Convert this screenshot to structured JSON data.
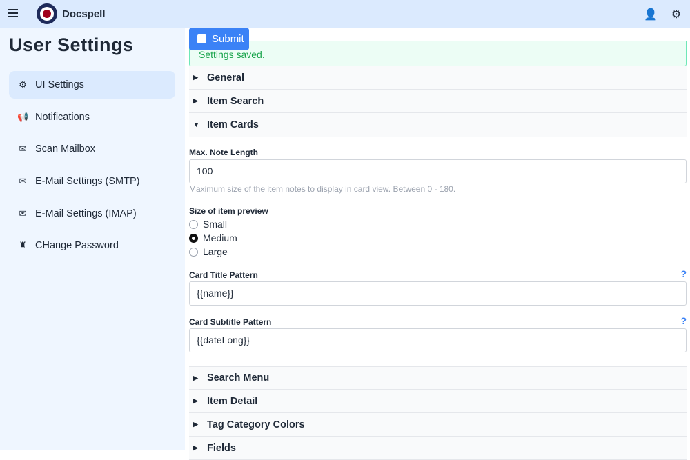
{
  "header": {
    "brand": "Docspell",
    "icons": [
      "menu-icon",
      "user-icon",
      "settings-icon"
    ]
  },
  "sidebar": {
    "title": "User Settings",
    "items": [
      {
        "label": "UI Settings",
        "icon": "gear-icon",
        "active": true
      },
      {
        "label": "Notifications",
        "icon": "megaphone-icon"
      },
      {
        "label": "Scan Mailbox",
        "icon": "envelope-open-icon"
      },
      {
        "label": "E-Mail Settings (SMTP)",
        "icon": "envelope-icon"
      },
      {
        "label": "E-Mail Settings (IMAP)",
        "icon": "envelope-icon"
      },
      {
        "label": "CHange Password",
        "icon": "user-secret-icon"
      }
    ]
  },
  "main": {
    "submit_label": "Submit",
    "saved_message": "Settings saved.",
    "sections_top": [
      "General",
      "Item Search",
      "Item Cards"
    ],
    "max_note": {
      "label": "Max. Note Length",
      "value": "100",
      "hint": "Maximum size of the item notes to display in card view. Between 0 - 180."
    },
    "preview": {
      "label": "Size of item preview",
      "options": [
        "Small",
        "Medium",
        "Large"
      ],
      "selected": "Medium"
    },
    "title_pattern": {
      "label": "Card Title Pattern",
      "value": "{{name}}",
      "help": "?"
    },
    "subtitle_pattern": {
      "label": "Card Subtitle Pattern",
      "value": "{{dateLong}}",
      "help": "?"
    },
    "sections_bottom": [
      "Search Menu",
      "Item Detail",
      "Tag Category Colors",
      "Fields"
    ]
  }
}
